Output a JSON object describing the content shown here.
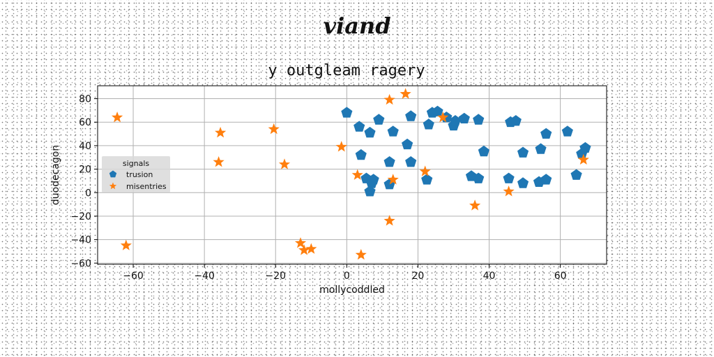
{
  "header": {
    "title": "viand"
  },
  "chart_data": {
    "type": "scatter",
    "title": "y outgleam ragery",
    "xlabel": "mollycoddled",
    "ylabel": "duodecagon",
    "xlim": [
      -70,
      73
    ],
    "ylim": [
      -61,
      91
    ],
    "xticks": [
      -60,
      -40,
      -20,
      0,
      20,
      40,
      60
    ],
    "yticks": [
      -60,
      -40,
      -20,
      0,
      20,
      40,
      60,
      80
    ],
    "grid": true,
    "legend": {
      "title": "signals",
      "placement": "center-left"
    },
    "series": [
      {
        "name": "trusion",
        "marker": "pentagon",
        "color": "#1f77b4",
        "points": [
          [
            0,
            68
          ],
          [
            3.5,
            56
          ],
          [
            6.5,
            51
          ],
          [
            4,
            32
          ],
          [
            9,
            62
          ],
          [
            13,
            52
          ],
          [
            17,
            41
          ],
          [
            18,
            65
          ],
          [
            23,
            58
          ],
          [
            24,
            68
          ],
          [
            25.5,
            69
          ],
          [
            28,
            64
          ],
          [
            30,
            57
          ],
          [
            30.5,
            61
          ],
          [
            33,
            63
          ],
          [
            37,
            62
          ],
          [
            12,
            26
          ],
          [
            18,
            26
          ],
          [
            5.5,
            12
          ],
          [
            7.5,
            11
          ],
          [
            7,
            8
          ],
          [
            12,
            7
          ],
          [
            22.5,
            11
          ],
          [
            6.5,
            1
          ],
          [
            35,
            14
          ],
          [
            37,
            12
          ],
          [
            38.5,
            35
          ],
          [
            45.5,
            12
          ],
          [
            46,
            60
          ],
          [
            47.5,
            61
          ],
          [
            49.5,
            34
          ],
          [
            49.5,
            8
          ],
          [
            54,
            9
          ],
          [
            54.5,
            37
          ],
          [
            56,
            50
          ],
          [
            56,
            11
          ],
          [
            62,
            52
          ],
          [
            64.5,
            15
          ],
          [
            66,
            33
          ],
          [
            67,
            38
          ]
        ]
      },
      {
        "name": "misentries",
        "marker": "star",
        "color": "#ff7f0e",
        "points": [
          [
            -64.5,
            64
          ],
          [
            -62,
            -45
          ],
          [
            -35.5,
            51
          ],
          [
            -36,
            26
          ],
          [
            -20.5,
            54
          ],
          [
            -17.5,
            24
          ],
          [
            -13,
            -43
          ],
          [
            -12,
            -49
          ],
          [
            -10,
            -48
          ],
          [
            -1.5,
            39
          ],
          [
            3,
            15
          ],
          [
            4,
            -53
          ],
          [
            12,
            79
          ],
          [
            16.5,
            84
          ],
          [
            12,
            -24
          ],
          [
            13,
            11
          ],
          [
            22,
            18
          ],
          [
            27,
            64
          ],
          [
            36,
            -11
          ],
          [
            45.5,
            1
          ],
          [
            66.5,
            28
          ]
        ]
      }
    ]
  }
}
